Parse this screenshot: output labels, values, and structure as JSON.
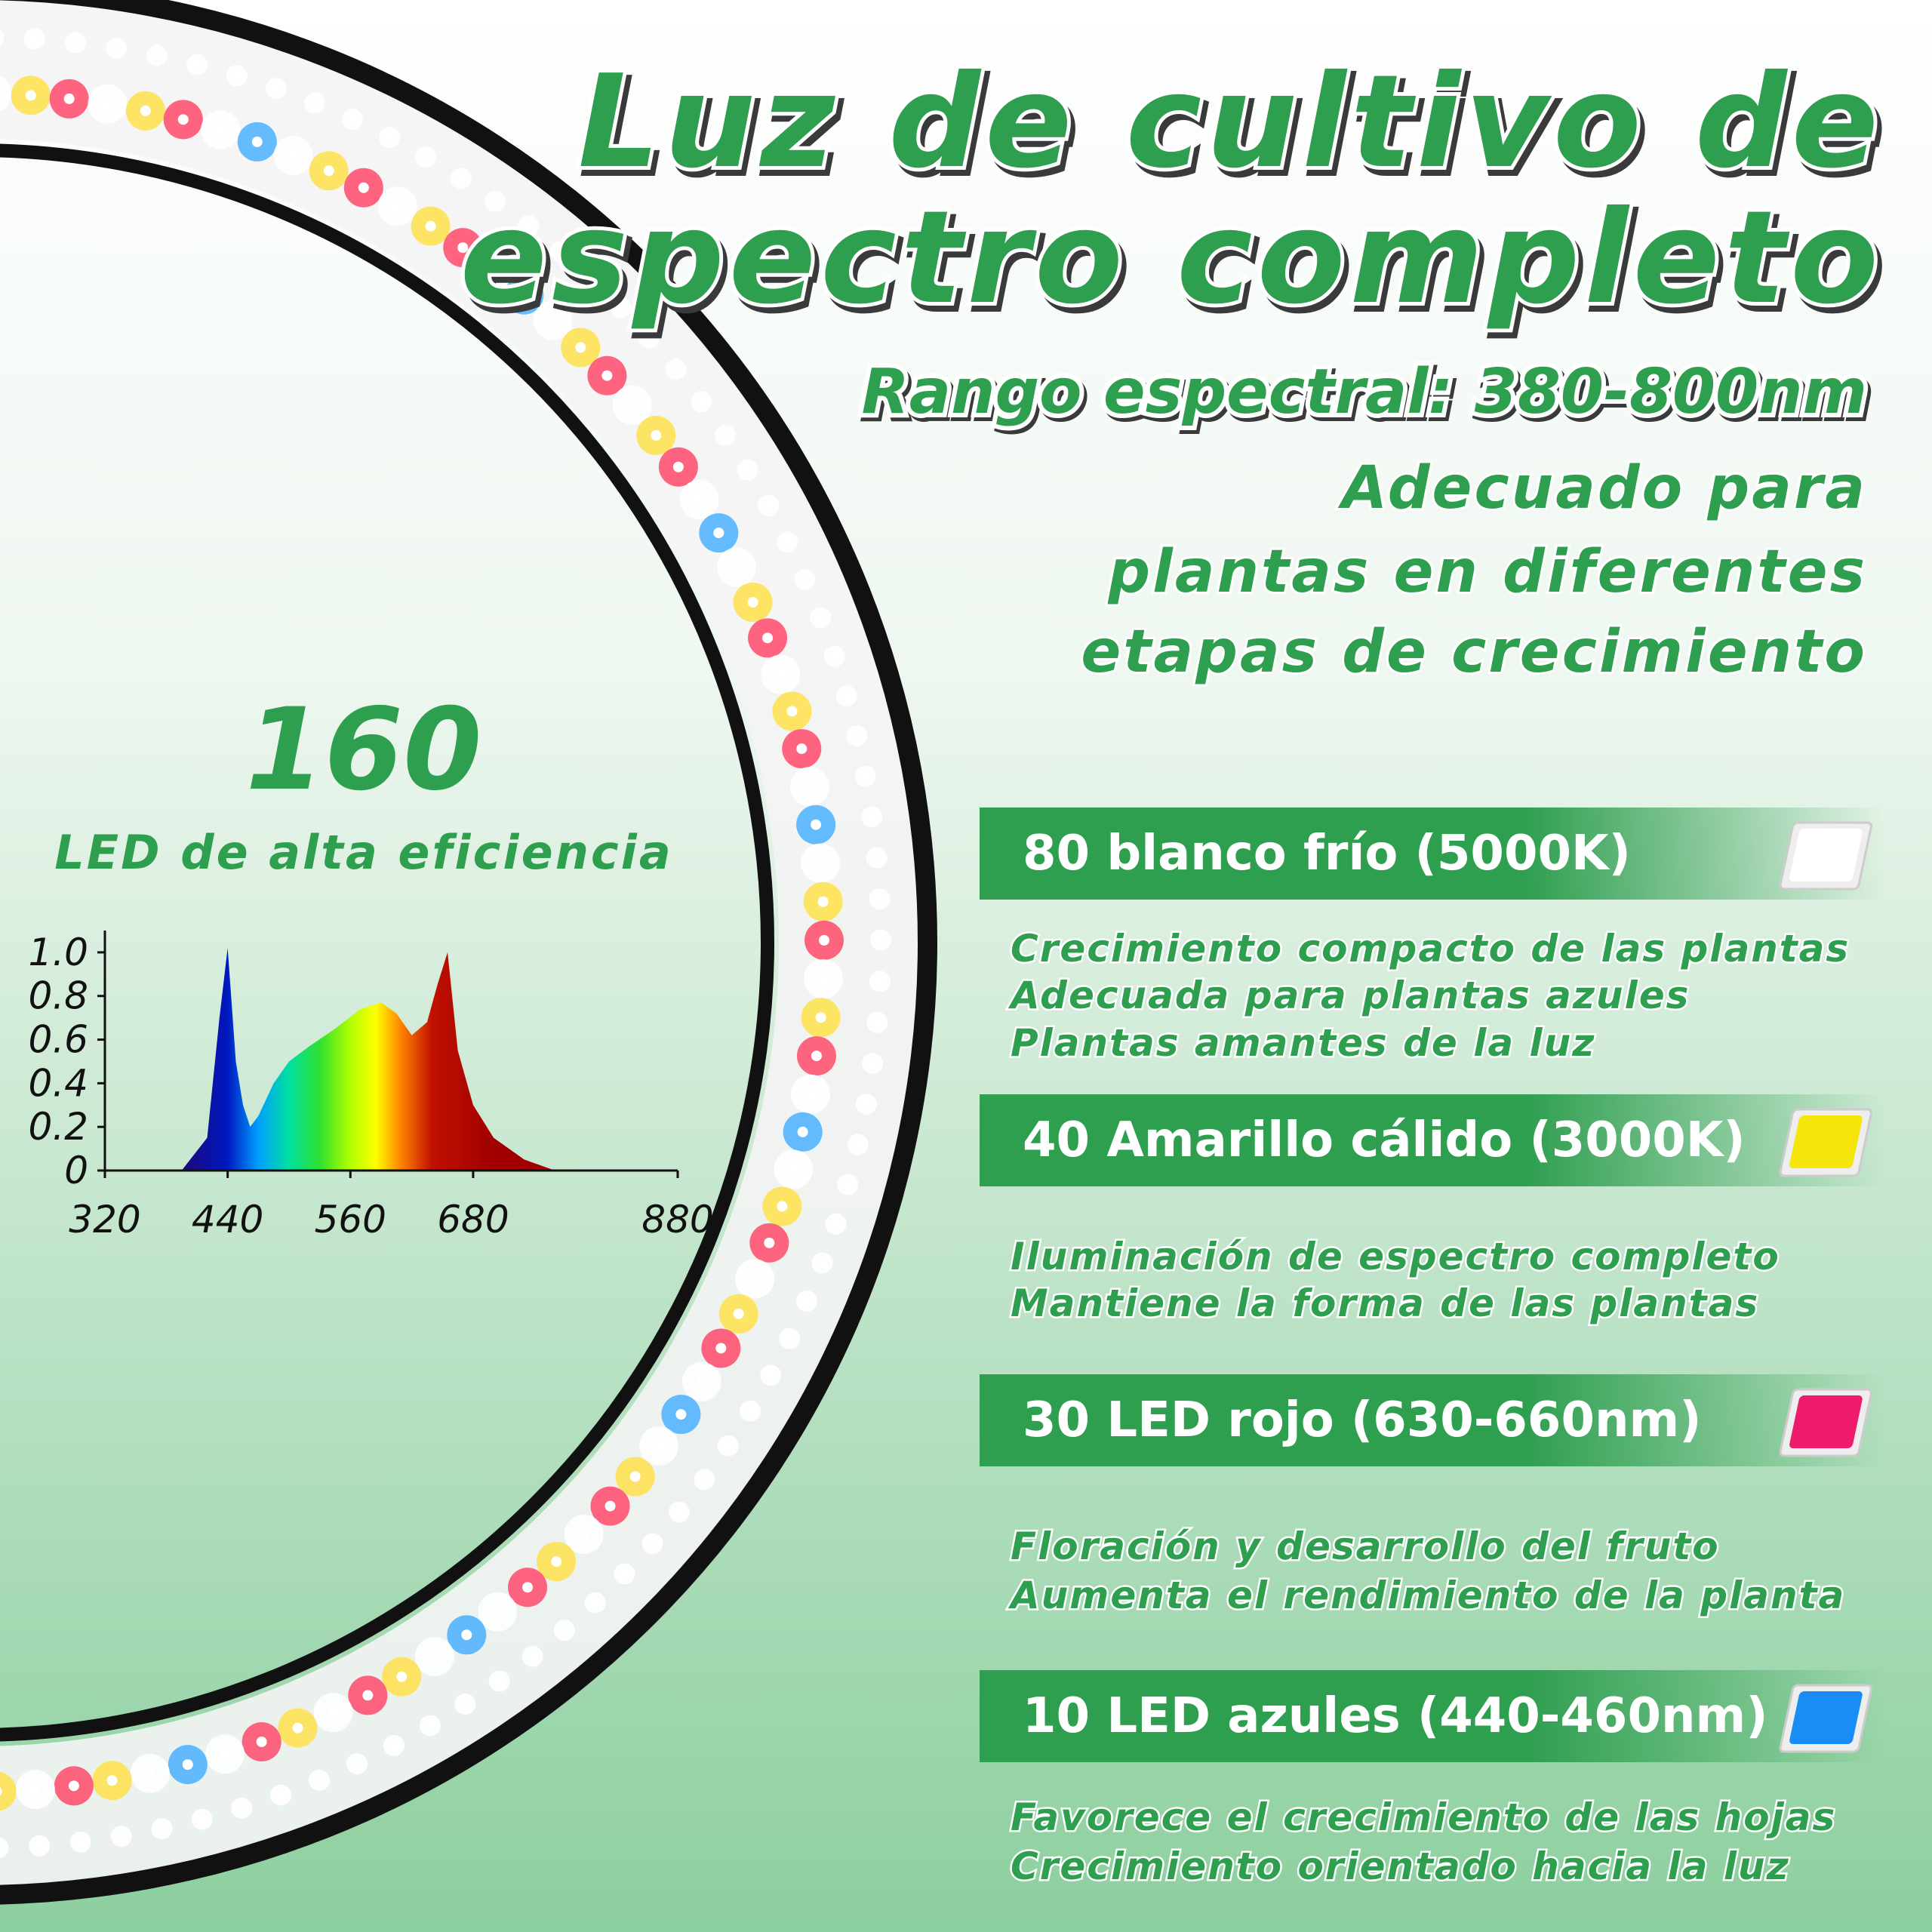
{
  "header": {
    "title": [
      "Luz de cultivo de",
      "espectro completo"
    ],
    "subtitle": "Rango espectral: 380-800nm",
    "description": [
      "Adecuado para",
      "plantas en diferentes",
      "etapas de crecimiento"
    ]
  },
  "led_count": {
    "number": "160",
    "label": "LED de alta eficiencia"
  },
  "chart_data": {
    "type": "area",
    "x": [
      395,
      420,
      432,
      440,
      448,
      455,
      462,
      470,
      485,
      500,
      520,
      545,
      570,
      590,
      605,
      620,
      635,
      645,
      655,
      665,
      680,
      700,
      730,
      760
    ],
    "values": [
      0,
      0.15,
      0.7,
      1.02,
      0.5,
      0.3,
      0.2,
      0.25,
      0.4,
      0.5,
      0.57,
      0.65,
      0.74,
      0.77,
      0.72,
      0.62,
      0.68,
      0.85,
      1.0,
      0.55,
      0.3,
      0.15,
      0.05,
      0
    ],
    "xlim": [
      320,
      880
    ],
    "xticks": [
      320,
      440,
      560,
      680,
      880
    ],
    "ylim": [
      0,
      1.1
    ],
    "yticks": [
      0,
      0.2,
      0.4,
      0.6,
      0.8,
      {
        "value": 1,
        "label": "1.0"
      }
    ]
  },
  "leds": [
    {
      "heading": "80 blanco frío (5000K)",
      "chip_color": "#ffffff",
      "lines": [
        "Crecimiento compacto de las plantas",
        "Adecuada para plantas azules",
        "Plantas amantes de la luz"
      ]
    },
    {
      "heading": "40 Amarillo cálido (3000K)",
      "chip_color": "#f5e50a",
      "lines": [
        "Iluminación de espectro completo",
        "Mantiene la forma de las plantas"
      ]
    },
    {
      "heading": "30 LED rojo (630-660nm)",
      "chip_color": "#ee1a6a",
      "lines": [
        "Floración y desarrollo del fruto",
        "Aumenta el rendimiento de la planta"
      ]
    },
    {
      "heading": "10 LED azules (440-460nm)",
      "chip_color": "#1a8cf5",
      "lines": [
        "Favorece el crecimiento de las hojas",
        "Crecimiento orientado hacia la luz"
      ]
    }
  ]
}
